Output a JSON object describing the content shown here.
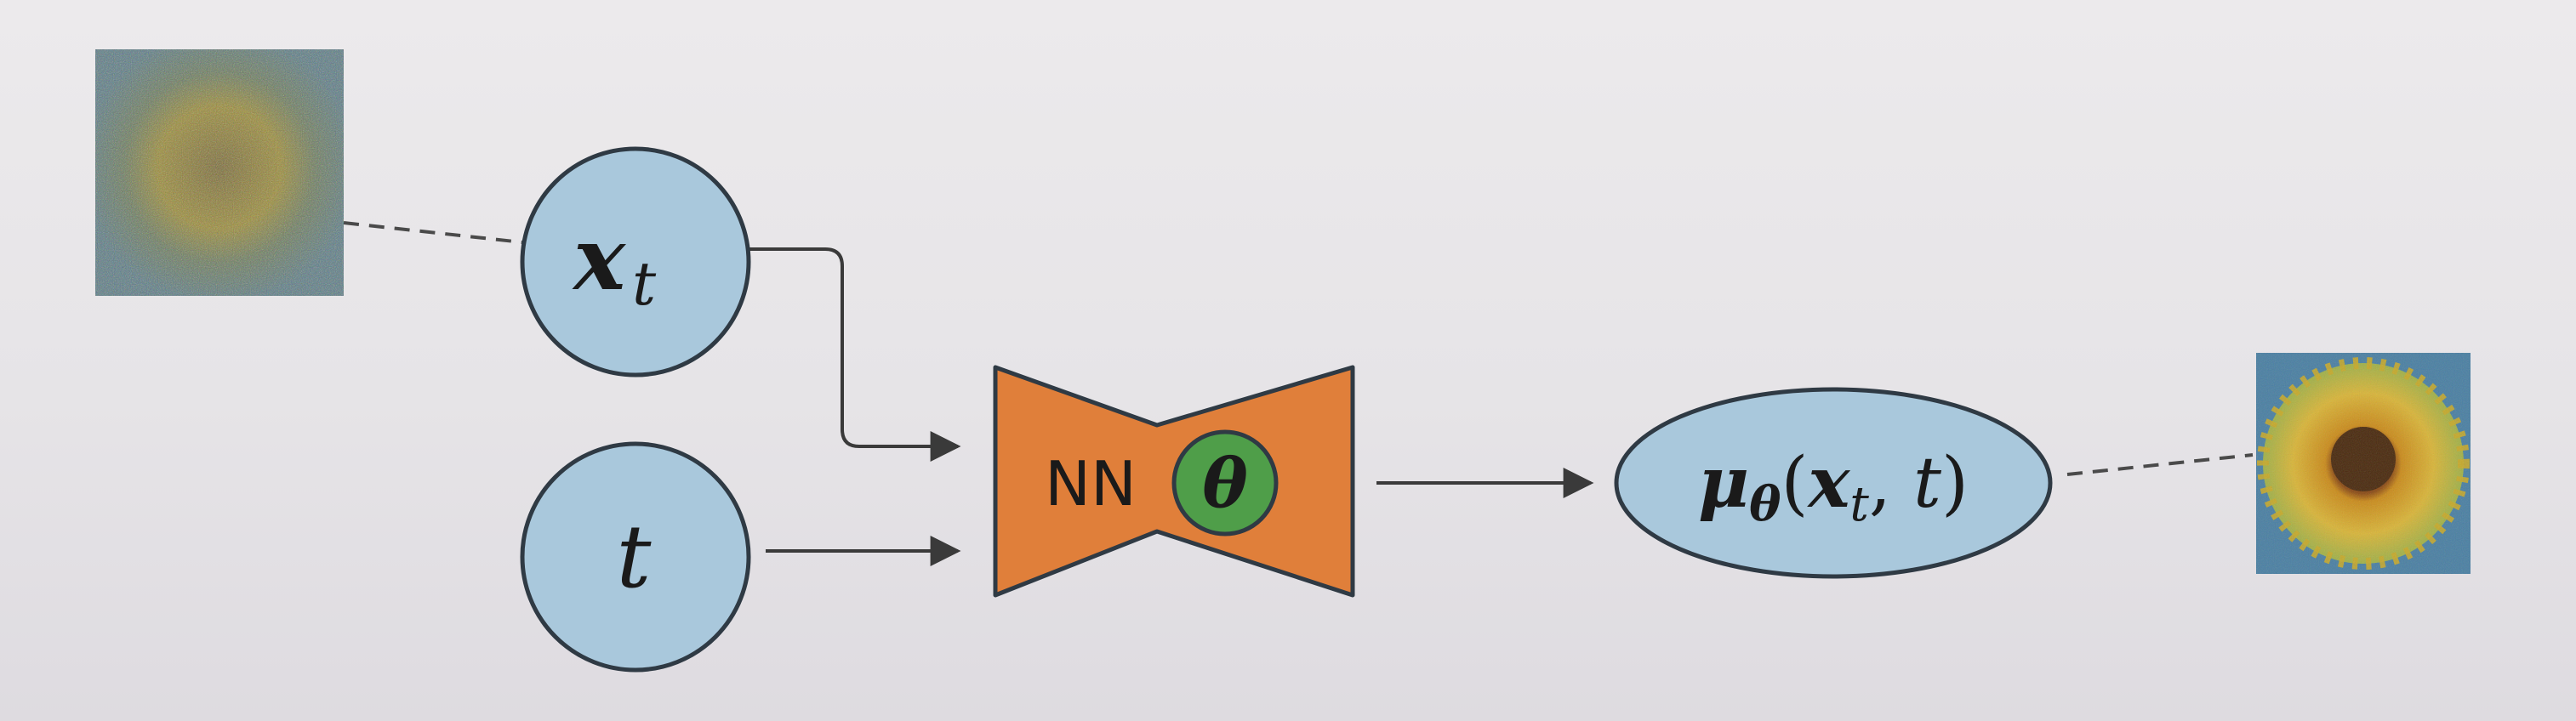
{
  "diagram": {
    "inputs": {
      "xt": {
        "symbol": "x",
        "subscript": "t"
      },
      "t": {
        "symbol": "t"
      }
    },
    "network": {
      "label": "NN",
      "param_symbol": "θ"
    },
    "output": {
      "mu": "μ",
      "sub": "θ",
      "args_open": "(",
      "arg_x": "x",
      "arg_x_sub": "t",
      "comma": ", ",
      "arg_t": "t",
      "args_close": ")"
    },
    "colors": {
      "node_fill": "#a9c8dc",
      "node_stroke": "#2f3a44",
      "network_fill": "#e07f3a",
      "param_fill": "#4f9e49",
      "edge": "#3a3a3a"
    },
    "images": {
      "noisy_input": "noisy-sunflower-image",
      "denoised_output": "denoised-sunflower-image"
    }
  }
}
